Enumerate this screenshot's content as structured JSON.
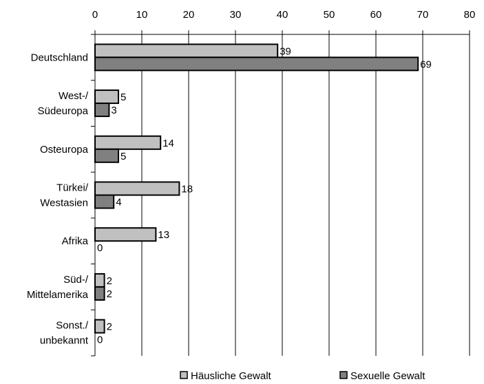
{
  "chart_data": {
    "type": "bar",
    "orientation": "horizontal",
    "title": "",
    "xlabel": "",
    "ylabel": "",
    "xlim": [
      0,
      80
    ],
    "x_ticks": [
      "0",
      "10",
      "20",
      "30",
      "40",
      "50",
      "60",
      "70",
      "80"
    ],
    "x_axis_position": "top",
    "grid": true,
    "legend_position": "bottom",
    "categories": [
      [
        "Deutschland"
      ],
      [
        "West-/",
        "Südeuropa"
      ],
      [
        "Osteuropa"
      ],
      [
        "Türkei/",
        "Westasien"
      ],
      [
        "Afrika"
      ],
      [
        "Süd-/",
        "Mittelamerika"
      ],
      [
        "Sonst./",
        "unbekannt"
      ]
    ],
    "series": [
      {
        "name": "Häusliche Gewalt",
        "color": "#c0c0c0",
        "values": [
          39,
          5,
          14,
          18,
          13,
          2,
          2
        ]
      },
      {
        "name": "Sexuelle Gewalt",
        "color": "#808080",
        "values": [
          69,
          3,
          5,
          4,
          0,
          2,
          0
        ]
      }
    ]
  }
}
